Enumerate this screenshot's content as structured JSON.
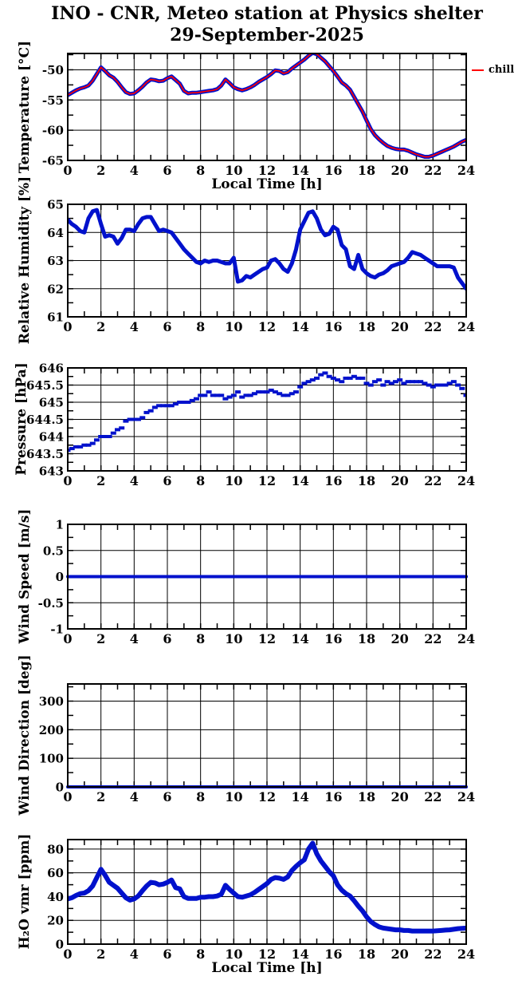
{
  "title": {
    "line1": "INO - CNR, Meteo station at Physics shelter",
    "line2": "29-September-2025"
  },
  "legend": {
    "label": "chill",
    "color": "#ff0000",
    "position": "right-of-first-plot"
  },
  "colors": {
    "data_blue": "#0011cc",
    "chill_red": "#ff0000",
    "frame_black": "#000000",
    "background": "#ffffff"
  },
  "x_axis": {
    "label": "Local Time [h]",
    "range": [
      0,
      24
    ],
    "major_ticks": [
      0,
      2,
      4,
      6,
      8,
      10,
      12,
      14,
      16,
      18,
      20,
      22,
      24
    ],
    "major_tick_labels": [
      "0",
      "2",
      "4",
      "6",
      "8",
      "10",
      "12",
      "14",
      "16",
      "18",
      "20",
      "22",
      "24"
    ],
    "minor_ticks": [
      1,
      3,
      5,
      7,
      9,
      11,
      13,
      15,
      17,
      19,
      21,
      23
    ]
  },
  "chart_data": [
    {
      "id": "temperature",
      "type": "line",
      "ylabel": "Temperature [°C]",
      "ylim": [
        -65,
        -47.3
      ],
      "ytick_values": [
        -50,
        -55,
        -60,
        -65
      ],
      "ytick_labels": [
        "-50",
        "-55",
        "-60",
        "-65"
      ],
      "yminor_values": [
        -47.5,
        -52.5,
        -57.5,
        -62.5
      ],
      "show_xlabel": true,
      "grid": true,
      "x_start": 0,
      "x_step": 0.25,
      "series": [
        {
          "name": "temperature",
          "color": "#0011cc",
          "width": 5,
          "values": [
            -54.2,
            -53.8,
            -53.4,
            -53.1,
            -52.9,
            -52.6,
            -51.8,
            -50.7,
            -49.6,
            -50.2,
            -50.9,
            -51.3,
            -52.0,
            -52.9,
            -53.7,
            -54.0,
            -53.9,
            -53.4,
            -52.8,
            -52.1,
            -51.6,
            -51.7,
            -51.9,
            -51.8,
            -51.4,
            -51.1,
            -51.7,
            -52.3,
            -53.5,
            -53.9,
            -53.8,
            -53.8,
            -53.7,
            -53.6,
            -53.5,
            -53.4,
            -53.2,
            -52.6,
            -51.6,
            -52.2,
            -52.9,
            -53.2,
            -53.4,
            -53.2,
            -52.9,
            -52.5,
            -52.0,
            -51.6,
            -51.2,
            -50.7,
            -50.1,
            -50.2,
            -50.6,
            -50.4,
            -49.8,
            -49.3,
            -48.8,
            -48.3,
            -47.7,
            -47.2,
            -47.4,
            -48.0,
            -48.6,
            -49.4,
            -50.2,
            -51.1,
            -52.1,
            -52.6,
            -53.3,
            -54.5,
            -55.7,
            -56.9,
            -58.4,
            -59.8,
            -60.8,
            -61.5,
            -62.1,
            -62.6,
            -62.9,
            -63.1,
            -63.2,
            -63.2,
            -63.4,
            -63.7,
            -64.0,
            -64.2,
            -64.4,
            -64.4,
            -64.2,
            -63.9,
            -63.6,
            -63.3,
            -63.0,
            -62.7,
            -62.3,
            -61.9,
            -61.6
          ]
        },
        {
          "name": "chill",
          "color": "#ff0000",
          "width": 1.7,
          "values_ref": 0
        }
      ]
    },
    {
      "id": "relative-humidity",
      "type": "line",
      "ylabel": "Relative Humidity [%]",
      "ylim": [
        61,
        65
      ],
      "ytick_values": [
        65,
        64,
        63,
        62,
        61
      ],
      "ytick_labels": [
        "65",
        "64",
        "63",
        "62",
        "61"
      ],
      "yminor_values": [
        61.5,
        62.5,
        63.5,
        64.5
      ],
      "show_xlabel": false,
      "grid": true,
      "x_start": 0,
      "x_step": 0.25,
      "series": [
        {
          "name": "relative-humidity",
          "color": "#0011cc",
          "width": 5,
          "values": [
            64.45,
            64.3,
            64.2,
            64.05,
            64.0,
            64.5,
            64.75,
            64.8,
            64.3,
            63.85,
            63.9,
            63.85,
            63.6,
            63.8,
            64.1,
            64.1,
            64.05,
            64.3,
            64.5,
            64.55,
            64.55,
            64.3,
            64.05,
            64.1,
            64.05,
            64.0,
            63.8,
            63.6,
            63.4,
            63.25,
            63.1,
            62.95,
            62.9,
            63.0,
            62.95,
            63.0,
            63.0,
            62.95,
            62.9,
            62.9,
            63.1,
            62.25,
            62.3,
            62.45,
            62.4,
            62.5,
            62.6,
            62.7,
            62.75,
            63.0,
            63.05,
            62.9,
            62.7,
            62.6,
            62.9,
            63.4,
            64.1,
            64.4,
            64.7,
            64.75,
            64.5,
            64.1,
            63.9,
            63.95,
            64.2,
            64.1,
            63.55,
            63.4,
            62.8,
            62.7,
            63.2,
            62.7,
            62.55,
            62.45,
            62.4,
            62.5,
            62.55,
            62.65,
            62.8,
            62.85,
            62.9,
            62.95,
            63.1,
            63.3,
            63.25,
            63.2,
            63.1,
            63.0,
            62.9,
            62.8,
            62.8,
            62.8,
            62.8,
            62.75,
            62.4,
            62.2,
            62.0
          ]
        }
      ]
    },
    {
      "id": "pressure",
      "type": "scatter",
      "ylabel": "Pressure [hPa]",
      "ylim": [
        643,
        646
      ],
      "ytick_values": [
        646,
        645.5,
        645,
        644.5,
        644,
        643.5,
        643
      ],
      "ytick_labels": [
        "646",
        "645.5",
        "645",
        "644.5",
        "644",
        "643.5",
        "643"
      ],
      "yminor_values": [
        643.25,
        643.75,
        644.25,
        644.75,
        645.25,
        645.75
      ],
      "show_xlabel": false,
      "grid": true,
      "x_start": 0,
      "x_step": 0.25,
      "series": [
        {
          "name": "pressure",
          "color": "#0011cc",
          "width": 4,
          "values": [
            643.6,
            643.65,
            643.7,
            643.7,
            643.75,
            643.75,
            643.8,
            643.9,
            644.0,
            644.0,
            644.0,
            644.1,
            644.2,
            644.25,
            644.45,
            644.5,
            644.5,
            644.5,
            644.55,
            644.7,
            644.75,
            644.85,
            644.9,
            644.9,
            644.9,
            644.9,
            644.95,
            645.0,
            645.0,
            645.0,
            645.05,
            645.1,
            645.2,
            645.2,
            645.3,
            645.2,
            645.2,
            645.2,
            645.1,
            645.15,
            645.2,
            645.3,
            645.15,
            645.2,
            645.2,
            645.25,
            645.3,
            645.3,
            645.3,
            645.35,
            645.3,
            645.25,
            645.2,
            645.2,
            645.25,
            645.3,
            645.45,
            645.55,
            645.6,
            645.65,
            645.7,
            645.8,
            645.85,
            645.75,
            645.7,
            645.65,
            645.6,
            645.7,
            645.7,
            645.75,
            645.7,
            645.7,
            645.55,
            645.5,
            645.6,
            645.65,
            645.5,
            645.6,
            645.55,
            645.6,
            645.65,
            645.55,
            645.6,
            645.6,
            645.6,
            645.6,
            645.55,
            645.5,
            645.45,
            645.5,
            645.5,
            645.5,
            645.55,
            645.6,
            645.5,
            645.4,
            645.2
          ]
        }
      ]
    },
    {
      "id": "wind-speed",
      "type": "line",
      "ylabel": "Wind Speed [m/s]",
      "ylim": [
        -1,
        1
      ],
      "ytick_values": [
        1,
        0.5,
        0,
        -0.5,
        -1
      ],
      "ytick_labels": [
        "1",
        "0.5",
        "0",
        "-0.5",
        "-1"
      ],
      "yminor_values": [
        -0.75,
        -0.25,
        0.25,
        0.75
      ],
      "show_xlabel": false,
      "grid": true,
      "x_start": 0,
      "x_step": 24,
      "series": [
        {
          "name": "wind-speed",
          "color": "#0011cc",
          "width": 4,
          "values": [
            0,
            0
          ]
        }
      ]
    },
    {
      "id": "wind-direction",
      "type": "line",
      "ylabel": "Wind Direction [deg]",
      "ylim": [
        0,
        360
      ],
      "ytick_values": [
        300,
        200,
        100,
        0
      ],
      "ytick_labels": [
        "300",
        "200",
        "100",
        "0"
      ],
      "yminor_values": [
        50,
        150,
        250,
        350
      ],
      "show_xlabel": false,
      "grid": true,
      "x_start": 0,
      "x_step": 24,
      "series": [
        {
          "name": "wind-direction",
          "color": "#0011cc",
          "width": 4,
          "values": [
            0,
            0
          ]
        }
      ]
    },
    {
      "id": "h2o-vmr",
      "type": "line",
      "ylabel": "H₂O vmr [ppm]",
      "ylim": [
        0,
        88
      ],
      "ytick_values": [
        80,
        60,
        40,
        20,
        0
      ],
      "ytick_labels": [
        "80",
        "60",
        "40",
        "20",
        "0"
      ],
      "yminor_values": [
        10,
        30,
        50,
        70
      ],
      "show_xlabel": true,
      "grid": true,
      "x_start": 0,
      "x_step": 0.25,
      "series": [
        {
          "name": "h2o-vmr",
          "color": "#0011cc",
          "width": 6,
          "values": [
            38,
            39,
            41,
            42.5,
            43,
            45,
            49,
            56,
            63,
            58,
            52,
            49.5,
            47,
            43,
            39,
            37,
            38,
            40.5,
            45,
            49,
            52,
            51.5,
            50,
            50.5,
            52,
            54,
            47.5,
            46.5,
            40,
            38.5,
            38.5,
            38.5,
            39.5,
            39.5,
            40,
            40,
            40.5,
            42,
            49.5,
            46,
            43,
            40,
            39.5,
            40.5,
            41.5,
            43.5,
            46,
            48.5,
            51,
            54.5,
            56,
            55.5,
            54.5,
            56.5,
            62,
            65.5,
            68.5,
            71,
            80,
            85,
            76,
            70,
            65.5,
            61,
            57.5,
            50,
            45.5,
            42.5,
            40.5,
            36.5,
            32,
            28,
            23,
            19,
            16.5,
            14.5,
            13.5,
            13,
            12.5,
            12,
            12,
            11.5,
            11.5,
            11,
            11,
            11,
            11,
            11,
            11,
            11.2,
            11.5,
            11.8,
            12,
            12.5,
            13,
            13.2,
            13.5
          ]
        }
      ]
    }
  ]
}
